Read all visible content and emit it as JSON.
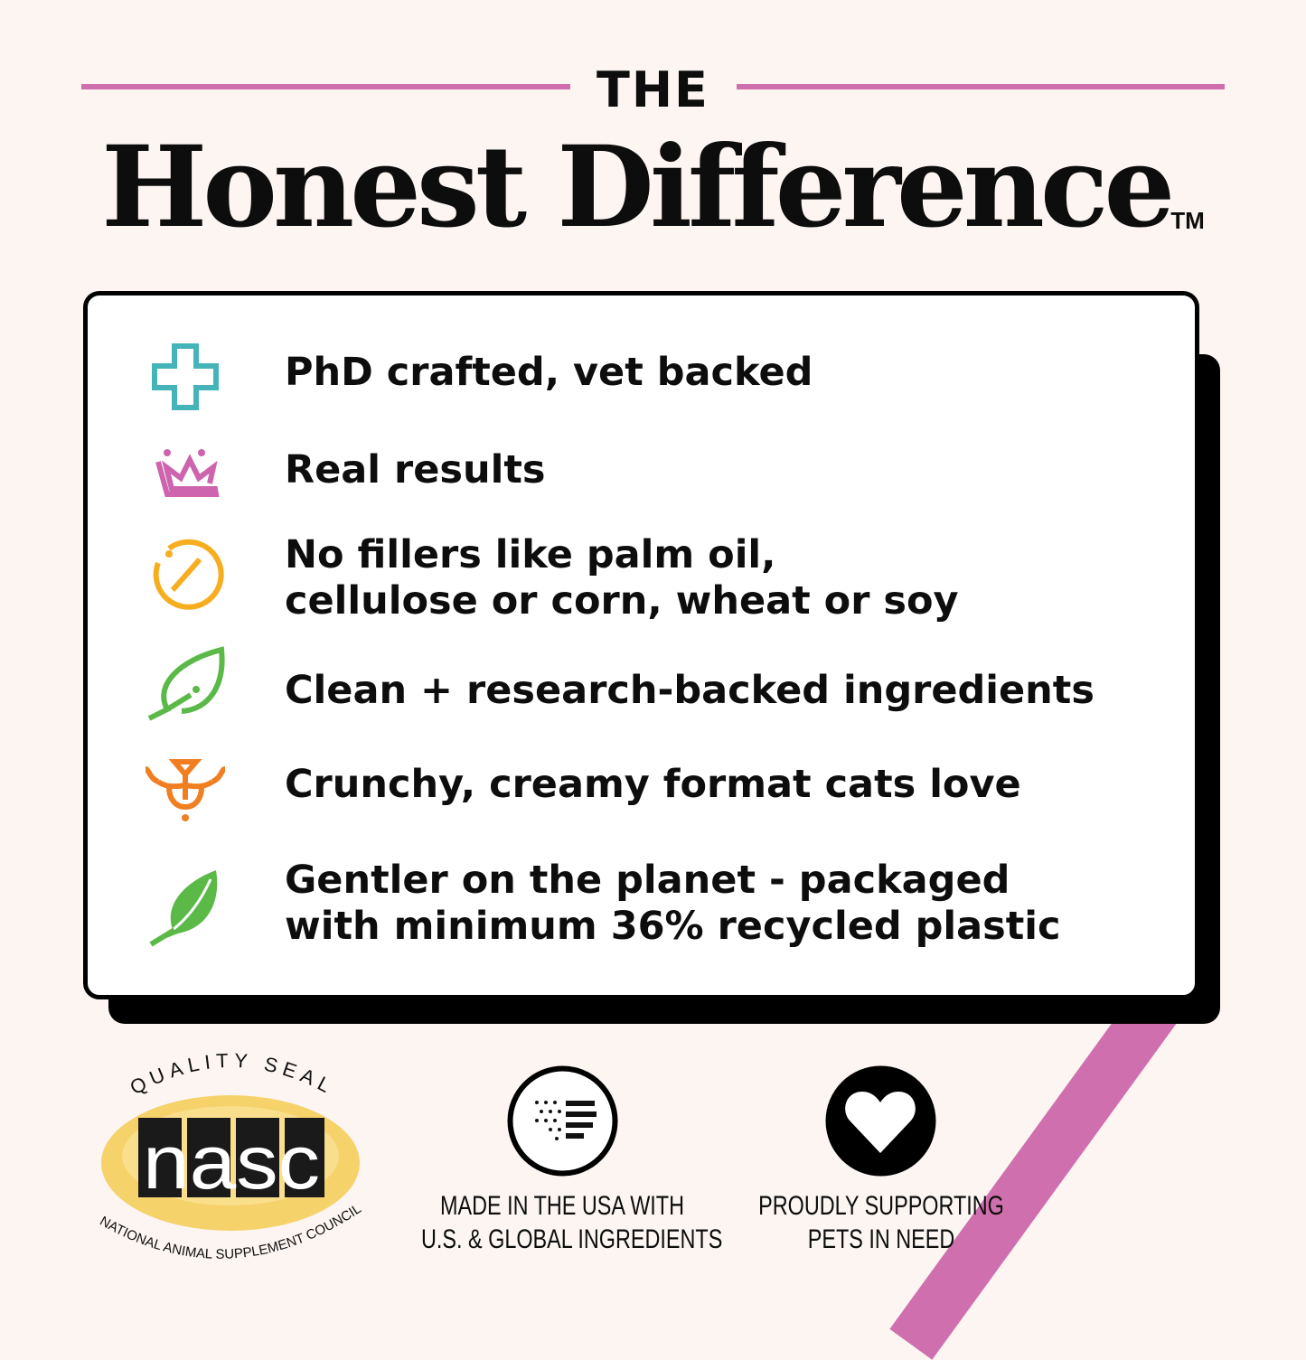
{
  "header": {
    "eyebrow": "THE",
    "title": "Honest Difference",
    "trademark": "TM"
  },
  "features": [
    {
      "icon": "medical-cross-icon",
      "color": "#45b4b9",
      "lines": [
        "PhD crafted, vet backed"
      ]
    },
    {
      "icon": "crown-icon",
      "color": "#cd64ad",
      "lines": [
        "Real results"
      ]
    },
    {
      "icon": "no-symbol-icon",
      "color": "#f6ae20",
      "lines": [
        "No fillers like palm oil,",
        "cellulose or corn, wheat or soy"
      ]
    },
    {
      "icon": "leaf-outline-icon",
      "color": "#5ab947",
      "lines": [
        "Clean + research-backed ingredients"
      ]
    },
    {
      "icon": "cat-face-icon",
      "color": "#f07f22",
      "lines": [
        "Crunchy, creamy format cats love"
      ]
    },
    {
      "icon": "leaf-solid-icon",
      "color": "#5ab947",
      "lines": [
        "Gentler on the planet - packaged",
        "with minimum 36% recycled plastic"
      ]
    }
  ],
  "badges": {
    "nasc": {
      "top": "QUALITY SEAL",
      "logo": "nasc",
      "bottom": "NATIONAL ANIMAL SUPPLEMENT COUNCIL"
    },
    "usa": {
      "icon": "flag-heart-icon",
      "lines": [
        "MADE IN THE USA WITH",
        "U.S. & GLOBAL INGREDIENTS"
      ]
    },
    "pets": {
      "icon": "heart-icon",
      "lines": [
        "PROUDLY SUPPORTING",
        "PETS IN NEED"
      ]
    }
  },
  "colors": {
    "background": "#fcf5f2",
    "accent": "#d06fae"
  }
}
